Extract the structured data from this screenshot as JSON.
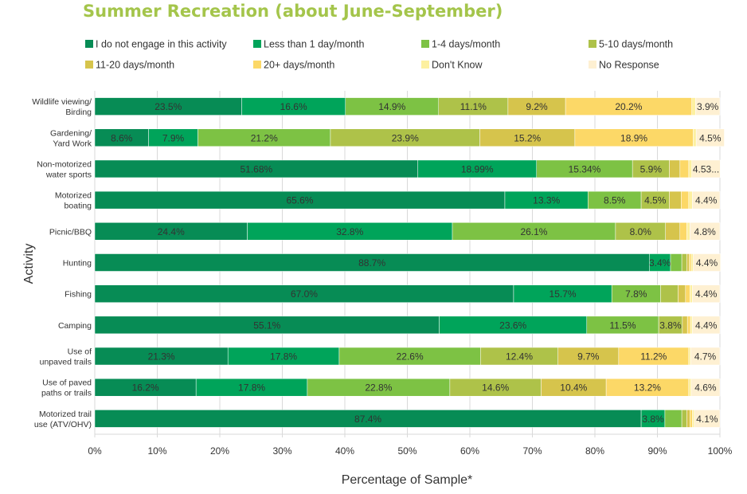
{
  "chart_data": {
    "type": "bar",
    "orientation": "horizontal",
    "stacked": "100-percent",
    "title": "Summer Recreation (about June-September)",
    "xlabel": "Percentage of Sample*",
    "ylabel": "Activity",
    "xlim": [
      0,
      100
    ],
    "x_ticks": [
      "0%",
      "10%",
      "20%",
      "30%",
      "40%",
      "50%",
      "60%",
      "70%",
      "80%",
      "90%",
      "100%"
    ],
    "grid": "vertical",
    "legend_position": "top",
    "categories": [
      [
        "Wildlife viewing/",
        "Birding"
      ],
      [
        "Gardening/",
        "Yard Work"
      ],
      [
        "Non-motorized",
        "water sports"
      ],
      [
        "Motorized",
        "boating"
      ],
      [
        "Picnic/BBQ"
      ],
      [
        "Hunting"
      ],
      [
        "Fishing"
      ],
      [
        "Camping"
      ],
      [
        "Use of",
        "unpaved trails"
      ],
      [
        "Use of paved",
        "paths or trails"
      ],
      [
        "Motorized trail",
        "use (ATV/OHV)"
      ]
    ],
    "series": [
      {
        "name": "I do not engage in this activity",
        "color": "#078c55",
        "values": [
          23.5,
          8.6,
          51.68,
          65.6,
          24.4,
          88.7,
          67.0,
          55.1,
          21.3,
          16.2,
          87.4
        ],
        "labels": [
          "23.5%",
          "8.6%",
          "51.68%",
          "65.6%",
          "24.4%",
          "88.7%",
          "67.0%",
          "55.1%",
          "21.3%",
          "16.2%",
          "87.4%"
        ]
      },
      {
        "name": "Less than 1 day/month",
        "color": "#00a45a",
        "values": [
          16.6,
          7.9,
          18.99,
          13.3,
          32.8,
          3.4,
          15.7,
          23.6,
          17.8,
          17.8,
          3.8
        ],
        "labels": [
          "16.6%",
          "7.9%",
          "18.99%",
          "13.3%",
          "32.8%",
          "3.4%",
          "15.7%",
          "23.6%",
          "17.8%",
          "17.8%",
          "3.8%"
        ]
      },
      {
        "name": "1-4 days/month",
        "color": "#7dc244",
        "values": [
          14.9,
          21.2,
          15.34,
          8.5,
          26.1,
          1.8,
          7.8,
          11.5,
          22.6,
          22.8,
          2.7
        ],
        "labels": [
          "14.9%",
          "21.2%",
          "15.34%",
          "8.5%",
          "26.1%",
          "",
          "7.8%",
          "11.5%",
          "22.6%",
          "22.8%",
          ""
        ]
      },
      {
        "name": "5-10 days/month",
        "color": "#aec249",
        "values": [
          11.1,
          23.9,
          5.9,
          4.5,
          8.0,
          0.8,
          2.8,
          3.8,
          12.4,
          14.6,
          0.8
        ],
        "labels": [
          "11.1%",
          "23.9%",
          "5.9%",
          "4.5%",
          "8.0%",
          "",
          "",
          "3.8%",
          "12.4%",
          "14.6%",
          ""
        ]
      },
      {
        "name": "11-20 days/month",
        "color": "#d6c44c",
        "values": [
          9.2,
          15.2,
          1.7,
          1.9,
          2.3,
          0.4,
          1.2,
          0.8,
          9.7,
          10.4,
          0.5
        ],
        "labels": [
          "9.2%",
          "15.2%",
          "",
          "",
          "",
          "",
          "",
          "",
          "9.7%",
          "10.4%",
          ""
        ]
      },
      {
        "name": "20+ days/month",
        "color": "#fcd867",
        "values": [
          20.2,
          18.9,
          1.4,
          1.2,
          1.1,
          0.3,
          0.7,
          0.5,
          11.2,
          13.2,
          0.4
        ],
        "labels": [
          "20.2%",
          "18.9%",
          "",
          "",
          "",
          "",
          "",
          "",
          "11.2%",
          "13.2%",
          ""
        ]
      },
      {
        "name": "Don't Know",
        "color": "#fdf0a0",
        "values": [
          0.6,
          0.5,
          0.5,
          0.6,
          0.5,
          0.3,
          0.4,
          0.3,
          0.3,
          0.4,
          0.3
        ],
        "labels": [
          "",
          "",
          "",
          "",
          "",
          "",
          "",
          "",
          "",
          "",
          ""
        ]
      },
      {
        "name": "No Response",
        "color": "#fef0d2",
        "values": [
          3.9,
          4.5,
          4.53,
          4.4,
          4.8,
          4.4,
          4.4,
          4.4,
          4.7,
          4.6,
          4.1
        ],
        "labels": [
          "3.9%",
          "4.5%",
          "4.53...",
          "4.4%",
          "4.8%",
          "4.4%",
          "4.4%",
          "4.4%",
          "4.7%",
          "4.6%",
          "4.1%"
        ]
      }
    ]
  }
}
